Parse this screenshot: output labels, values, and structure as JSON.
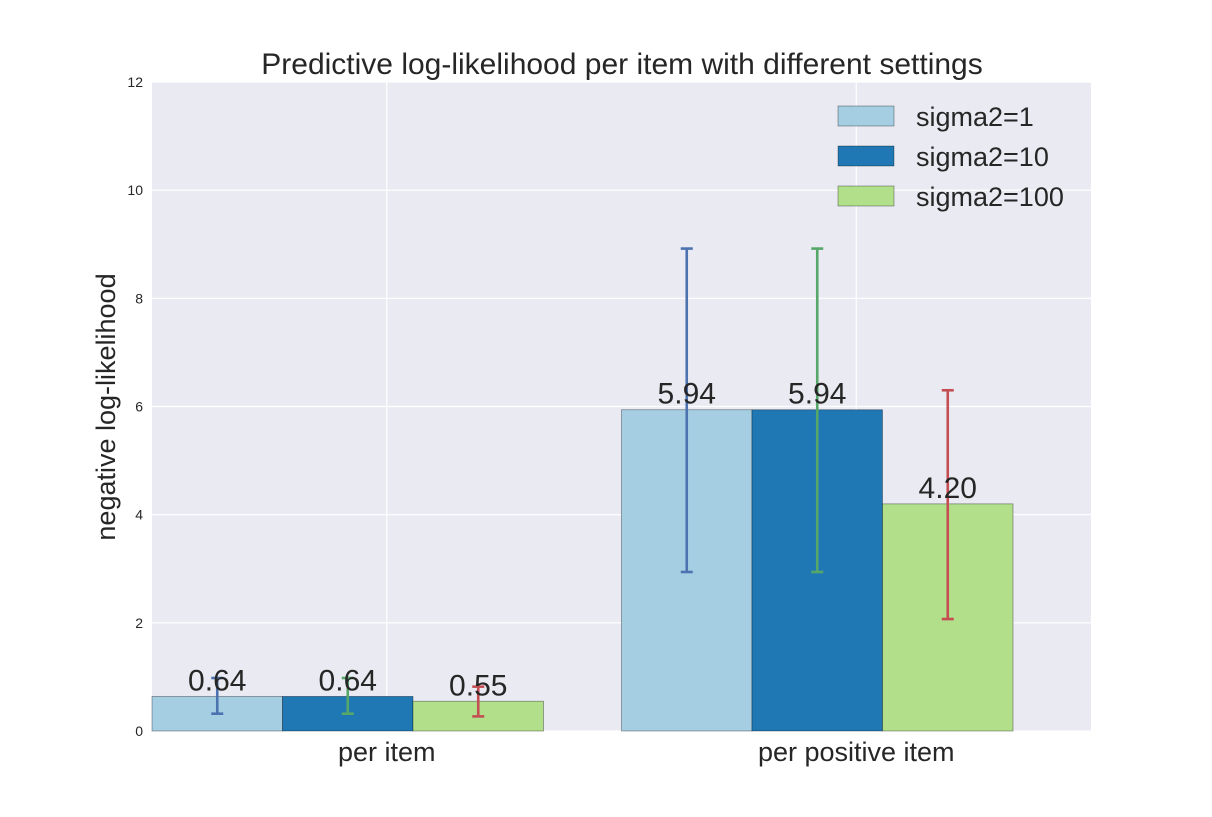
{
  "chart_data": {
    "type": "bar",
    "title": "Predictive log-likelihood per item with different settings",
    "xlabel": "",
    "ylabel": "negative log-likelihood",
    "categories": [
      "per item",
      "per positive item"
    ],
    "ylim": [
      0,
      12
    ],
    "yticks": [
      "0",
      "2",
      "4",
      "6",
      "8",
      "10",
      "12"
    ],
    "grid": true,
    "legend_position": "top-right",
    "series": [
      {
        "name": "sigma2=1",
        "values": [
          0.64,
          5.94
        ],
        "labels": [
          "0.64",
          "5.94"
        ],
        "err_low": [
          0.32,
          2.94
        ],
        "err_high": [
          0.98,
          8.92
        ],
        "color": "#a6cee3",
        "err_color": "#4c72b0"
      },
      {
        "name": "sigma2=10",
        "values": [
          0.64,
          5.94
        ],
        "labels": [
          "0.64",
          "5.94"
        ],
        "err_low": [
          0.32,
          2.94
        ],
        "err_high": [
          0.98,
          8.92
        ],
        "color": "#1f78b4",
        "err_color": "#55a868"
      },
      {
        "name": "sigma2=100",
        "values": [
          0.55,
          4.2
        ],
        "labels": [
          "0.55",
          "4.20"
        ],
        "err_low": [
          0.27,
          2.07
        ],
        "err_high": [
          0.82,
          6.3
        ],
        "color": "#b2df8a",
        "err_color": "#c44e52"
      }
    ],
    "colors": {
      "plot_bg": "#eaeaf2",
      "grid": "#ffffff",
      "text": "#262626"
    }
  }
}
